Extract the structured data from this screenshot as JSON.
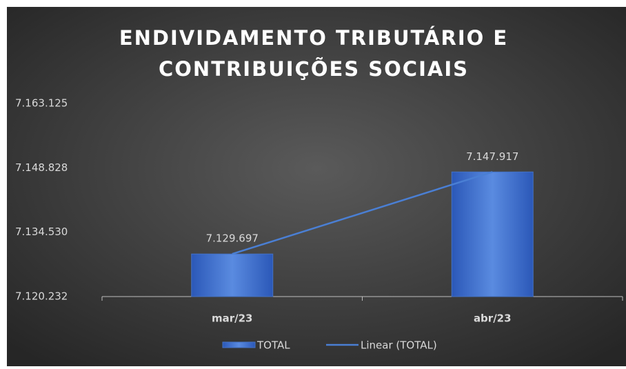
{
  "chart_data": {
    "type": "bar",
    "title": [
      "ENDIVIDAMENTO TRIBUTÁRIO E",
      "CONTRIBUIÇÕES SOCIAIS"
    ],
    "categories": [
      "mar/23",
      "abr/23"
    ],
    "series": [
      {
        "name": "TOTAL",
        "type": "bar",
        "color": "#4472c4",
        "values": [
          7129697,
          7147917
        ],
        "value_labels": [
          "7.129.697",
          "7.147.917"
        ]
      },
      {
        "name": "Linear (TOTAL)",
        "type": "trendline",
        "color": "#4a7fd4"
      }
    ],
    "ylim": [
      7120232,
      7163125
    ],
    "yticks": [
      {
        "value": 7120232,
        "label": "7.120.232"
      },
      {
        "value": 7134530,
        "label": "7.134.530"
      },
      {
        "value": 7148828,
        "label": "7.148.828"
      },
      {
        "value": 7163125,
        "label": "7.163.125"
      }
    ],
    "grid": false,
    "legend": "bottom"
  }
}
